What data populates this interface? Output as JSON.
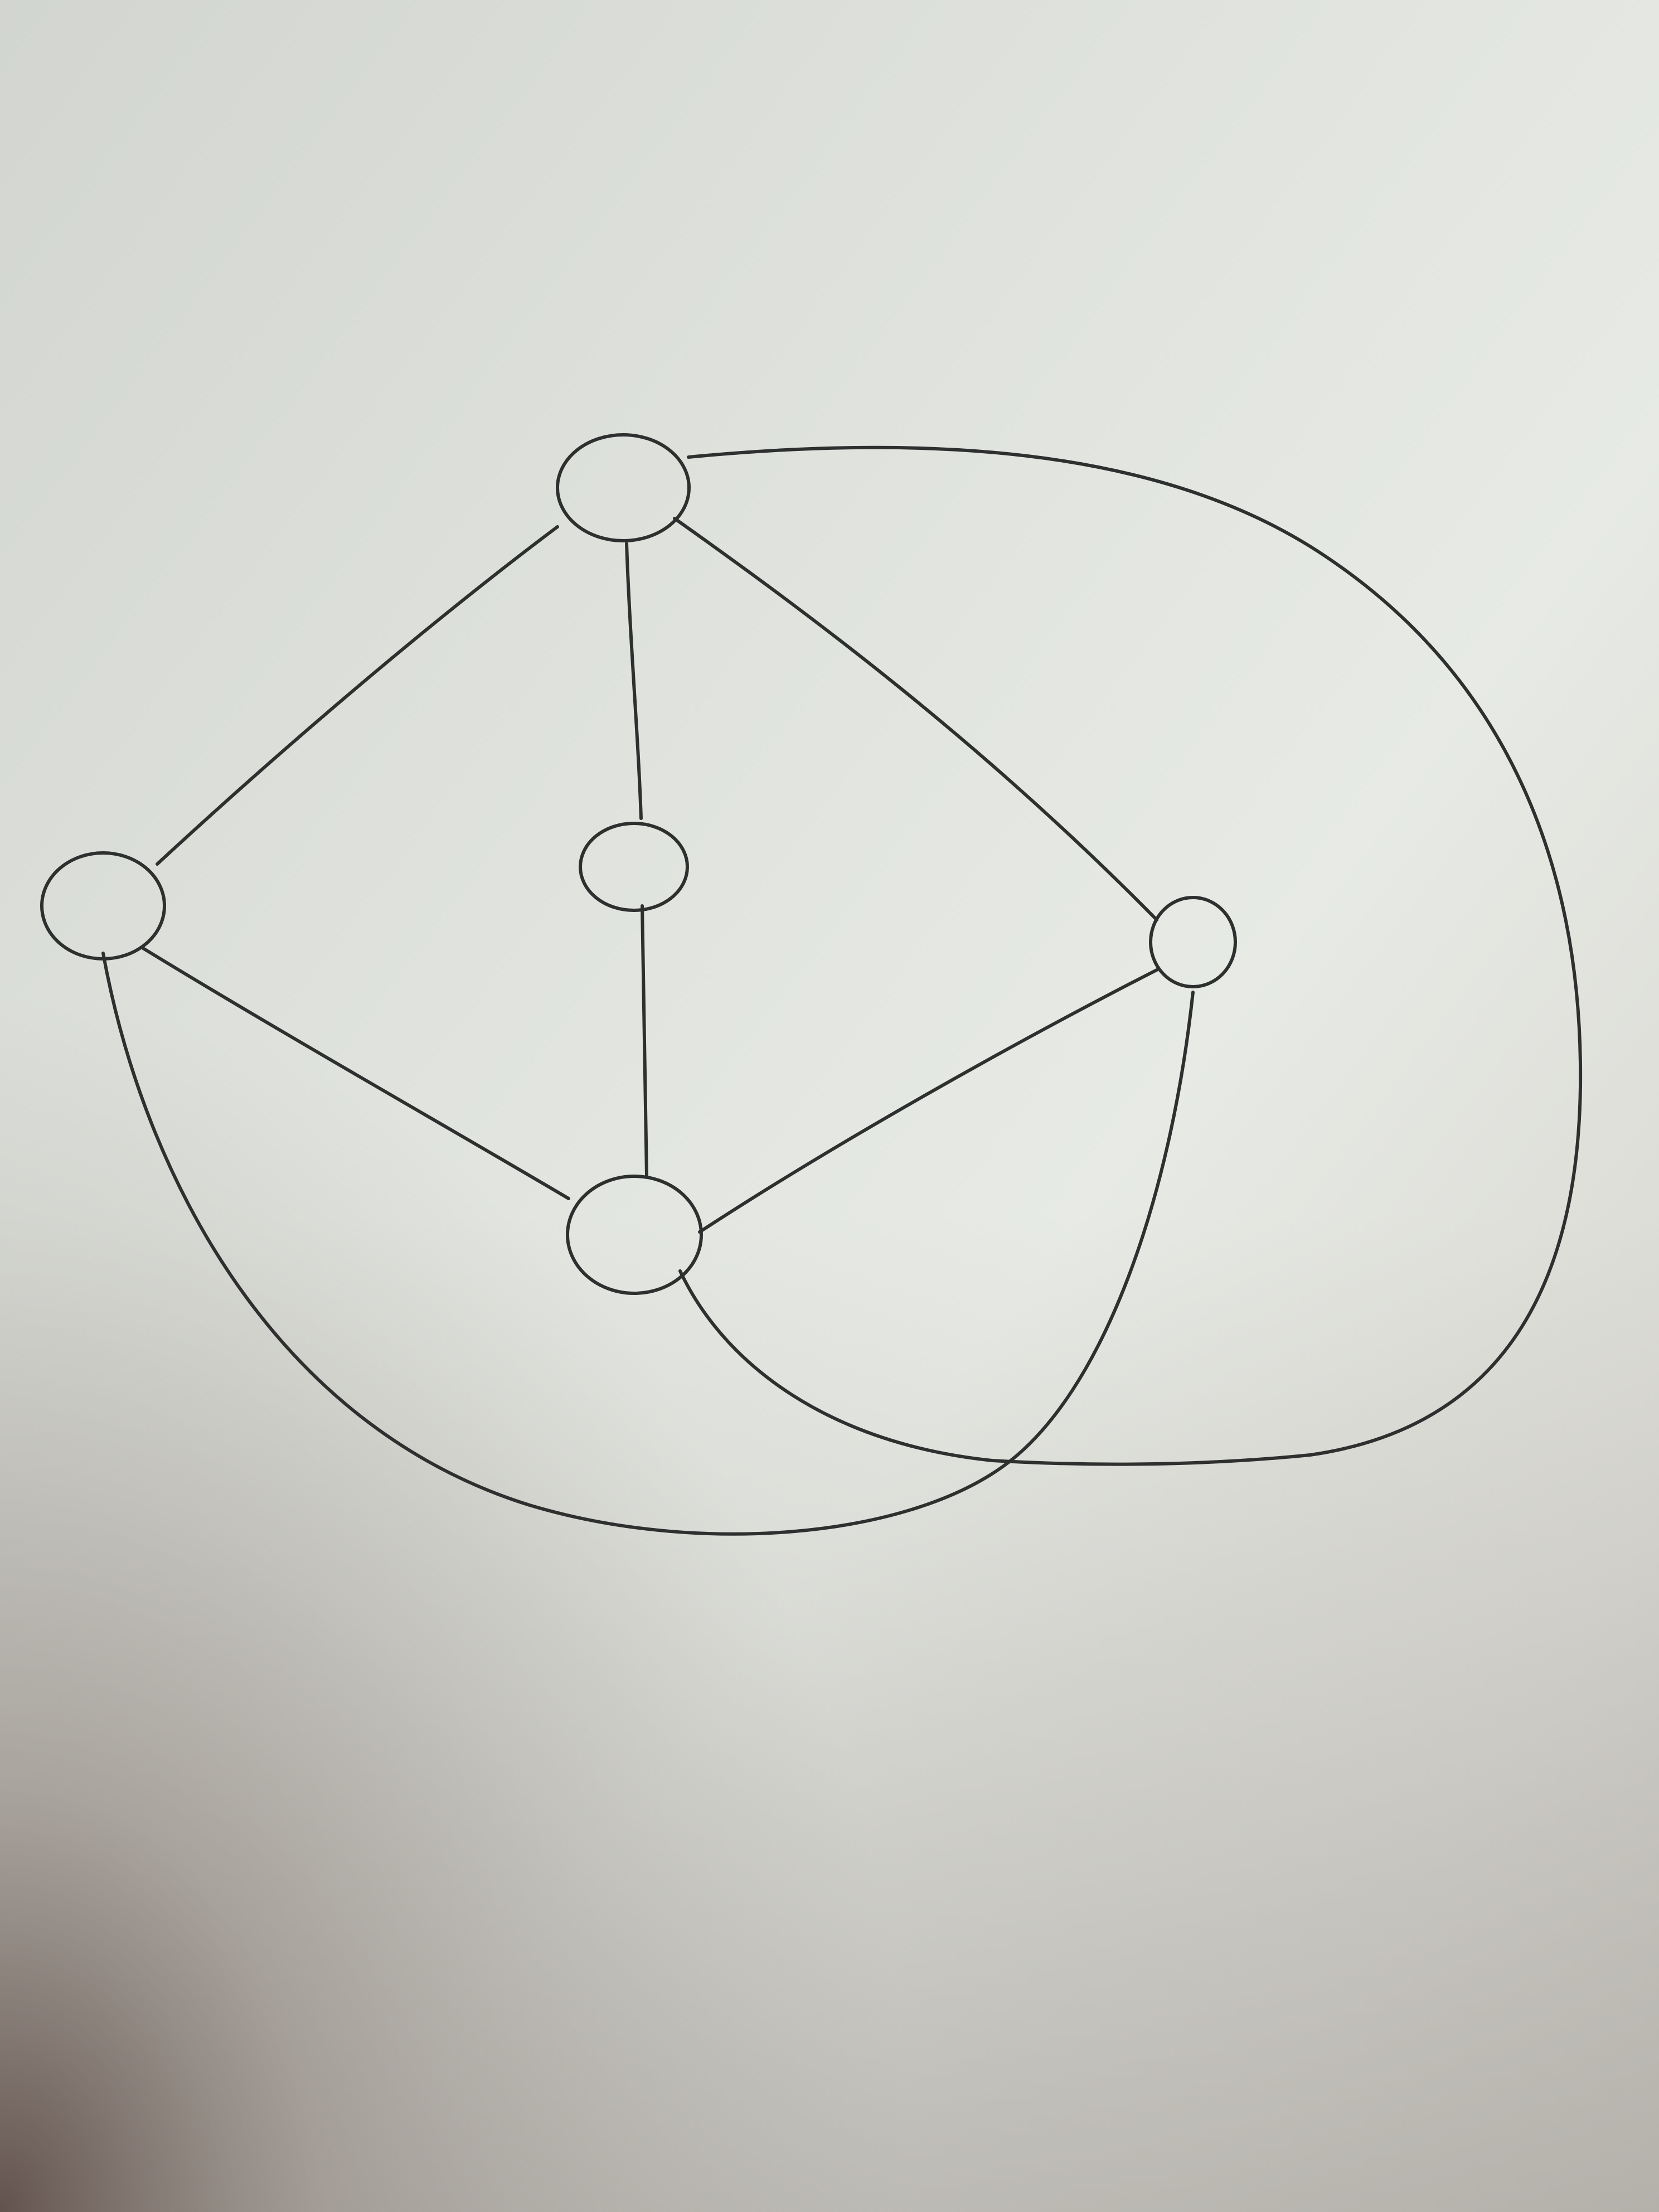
{
  "diagram": {
    "kind": "undirected graph, hand-drawn in pencil on paper",
    "nodes": [
      {
        "id": "top",
        "label": ""
      },
      {
        "id": "left",
        "label": ""
      },
      {
        "id": "center",
        "label": ""
      },
      {
        "id": "right",
        "label": ""
      },
      {
        "id": "bottom",
        "label": ""
      }
    ],
    "edges": [
      {
        "from": "top",
        "to": "left"
      },
      {
        "from": "top",
        "to": "center"
      },
      {
        "from": "top",
        "to": "right"
      },
      {
        "from": "center",
        "to": "bottom"
      },
      {
        "from": "left",
        "to": "bottom"
      },
      {
        "from": "right",
        "to": "bottom"
      },
      {
        "from": "left",
        "to": "right",
        "style": "curved, passing below the bottom node"
      },
      {
        "from": "top",
        "to": "bottom",
        "style": "large curve around the right side"
      }
    ]
  },
  "colors": {
    "ink": "#2e2f2f",
    "paper_light": "#e6e9e4",
    "paper_mid": "#c9ccc6",
    "paper_shadow": "#8f8b85",
    "paper_dark_corner": "#6e5d57"
  }
}
